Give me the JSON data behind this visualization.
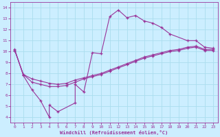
{
  "xlabel": "Windchill (Refroidissement éolien,°C)",
  "background_color": "#cceeff",
  "line_color": "#993399",
  "grid_color": "#aaddee",
  "xlim": [
    -0.5,
    23.5
  ],
  "ylim": [
    3.5,
    14.5
  ],
  "xticks": [
    0,
    1,
    2,
    3,
    4,
    5,
    6,
    7,
    8,
    9,
    10,
    11,
    12,
    13,
    14,
    15,
    16,
    17,
    18,
    19,
    20,
    21,
    22,
    23
  ],
  "yticks": [
    4,
    5,
    6,
    7,
    8,
    9,
    10,
    11,
    12,
    13,
    14
  ],
  "line1_x": [
    0,
    1,
    2,
    3,
    4,
    4,
    5,
    7,
    7,
    8,
    9,
    10,
    11,
    12,
    13,
    14,
    15,
    16,
    17,
    18,
    20,
    21,
    22,
    23
  ],
  "line1_y": [
    10.2,
    7.8,
    6.5,
    5.5,
    4.0,
    5.1,
    4.5,
    5.3,
    7.0,
    6.3,
    9.9,
    9.8,
    13.2,
    13.8,
    13.1,
    13.3,
    12.8,
    12.6,
    12.2,
    11.6,
    11.0,
    11.0,
    10.4,
    10.3
  ],
  "line2_x": [
    0,
    1,
    2,
    3,
    4,
    5,
    6,
    7,
    8,
    9,
    10,
    11,
    12,
    13,
    14,
    15,
    16,
    17,
    18,
    19,
    20,
    21,
    22,
    23
  ],
  "line2_y": [
    10.1,
    7.9,
    7.5,
    7.3,
    7.1,
    7.0,
    7.1,
    7.4,
    7.6,
    7.8,
    8.0,
    8.3,
    8.6,
    8.9,
    9.2,
    9.5,
    9.7,
    9.9,
    10.1,
    10.2,
    10.4,
    10.5,
    10.2,
    10.2
  ],
  "line3_x": [
    0,
    1,
    2,
    3,
    4,
    5,
    6,
    7,
    8,
    9,
    10,
    11,
    12,
    13,
    14,
    15,
    16,
    17,
    18,
    19,
    20,
    21,
    22,
    23
  ],
  "line3_y": [
    10.1,
    7.9,
    7.2,
    7.0,
    6.8,
    6.8,
    6.9,
    7.2,
    7.5,
    7.7,
    7.9,
    8.2,
    8.5,
    8.8,
    9.1,
    9.4,
    9.6,
    9.8,
    10.0,
    10.1,
    10.3,
    10.4,
    10.1,
    10.1
  ]
}
